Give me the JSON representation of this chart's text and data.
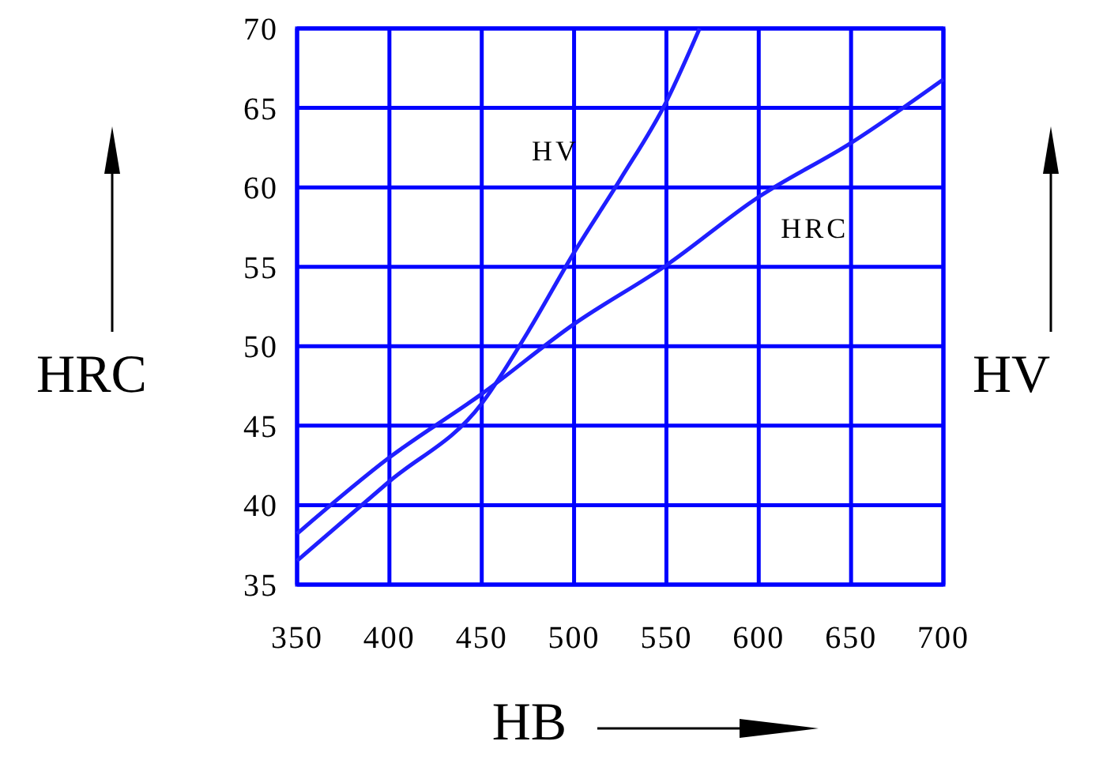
{
  "chart_data": {
    "type": "line",
    "xlabel": "HB",
    "ylabel": "HRC",
    "y2label": "HV",
    "xlim": [
      350,
      700
    ],
    "xticks": [
      350,
      400,
      450,
      500,
      550,
      600,
      650,
      700
    ],
    "ylim": [
      35,
      70
    ],
    "yticks": [
      35,
      40,
      45,
      50,
      55,
      60,
      65,
      70
    ],
    "grid": true,
    "marker": "none",
    "line_style": "solid",
    "series": [
      {
        "name": "HV",
        "color": "#1f1fff",
        "x": [
          350,
          400,
          450,
          475,
          500,
          525,
          550,
          568
        ],
        "values": [
          36.5,
          41.5,
          46.4,
          50.9,
          55.9,
          60.5,
          65.4,
          70
        ]
      },
      {
        "name": "HRC",
        "color": "#1f1fff",
        "x": [
          350,
          400,
          450,
          500,
          550,
          600,
          650,
          700
        ],
        "values": [
          38.2,
          43,
          47,
          51.4,
          55.1,
          59.4,
          62.8,
          66.8
        ]
      }
    ]
  }
}
